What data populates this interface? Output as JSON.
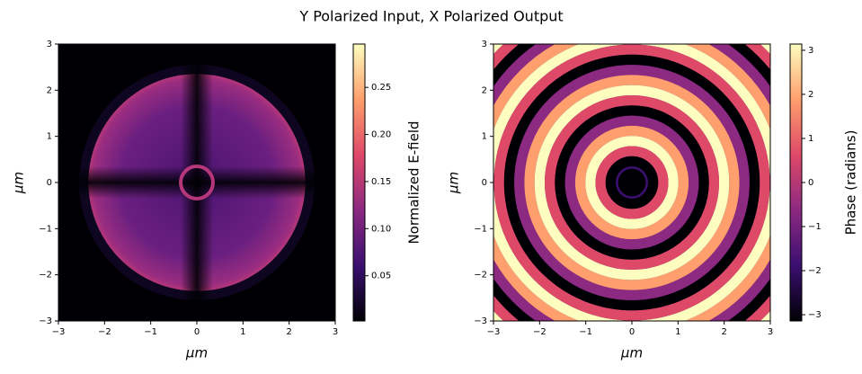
{
  "title": "Y Polarized Input, X Polarized Output",
  "chart_data": [
    {
      "type": "heatmap",
      "xlabel": "μm",
      "ylabel": "μm",
      "colormap": "magma",
      "xlim": [
        -3,
        3
      ],
      "ylim": [
        -3,
        3
      ],
      "xticks": [
        {
          "value": -3,
          "label": "−3"
        },
        {
          "value": -2,
          "label": "−2"
        },
        {
          "value": -1,
          "label": "−1"
        },
        0,
        1,
        2,
        3
      ],
      "yticks": [
        {
          "value": -3,
          "label": "−3"
        },
        {
          "value": -2,
          "label": "−2"
        },
        {
          "value": -1,
          "label": "−1"
        },
        0,
        1,
        2,
        3
      ],
      "colorbar": {
        "label": "Normalized E-field",
        "lim": [
          0.002,
          0.296
        ],
        "ticks": [
          0.05,
          {
            "value": 0.1,
            "label": "0.10"
          },
          0.15,
          {
            "value": 0.2,
            "label": "0.20"
          },
          0.25
        ]
      }
    },
    {
      "type": "heatmap",
      "xlabel": "μm",
      "ylabel": "μm",
      "colormap": "magma",
      "xlim": [
        -3,
        3
      ],
      "ylim": [
        -3,
        3
      ],
      "xticks": [
        {
          "value": -3,
          "label": "−3"
        },
        {
          "value": -2,
          "label": "−2"
        },
        {
          "value": -1,
          "label": "−1"
        },
        0,
        1,
        2,
        3
      ],
      "yticks": [
        {
          "value": -3,
          "label": "−3"
        },
        {
          "value": -2,
          "label": "−2"
        },
        {
          "value": -1,
          "label": "−1"
        },
        0,
        1,
        2,
        3
      ],
      "colorbar": {
        "label": "Phase (radians)",
        "lim": [
          -3.1416,
          3.1416
        ],
        "ticks": [
          {
            "value": -3,
            "label": "−3"
          },
          {
            "value": -2,
            "label": "−2"
          },
          {
            "value": -1,
            "label": "−1"
          },
          0,
          1,
          2,
          3
        ]
      }
    }
  ]
}
